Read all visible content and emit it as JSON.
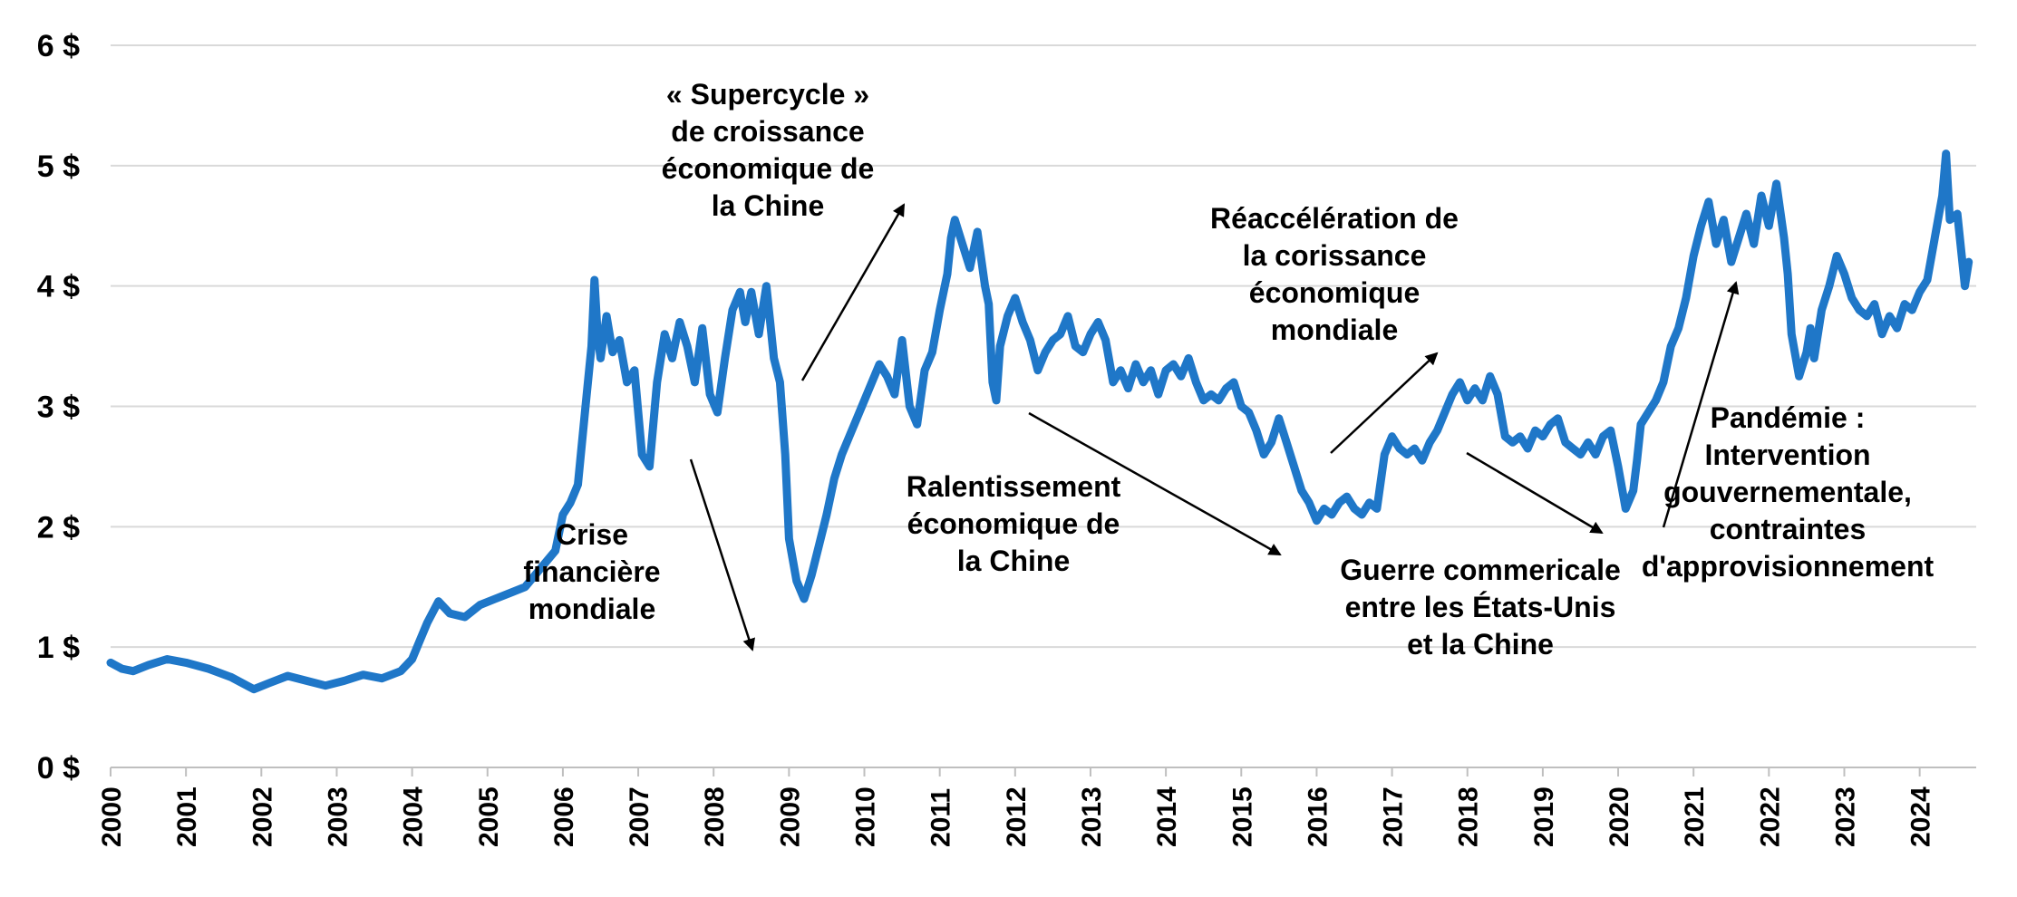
{
  "chart_data": {
    "type": "line",
    "title": "",
    "xlabel": "",
    "ylabel": "",
    "ylim": [
      0,
      6
    ],
    "xlim": [
      2000,
      2024.75
    ],
    "grid": true,
    "yticks": [
      {
        "value": 0,
        "label": "0 $"
      },
      {
        "value": 1,
        "label": "1 $"
      },
      {
        "value": 2,
        "label": "2 $"
      },
      {
        "value": 3,
        "label": "3 $"
      },
      {
        "value": 4,
        "label": "4 $"
      },
      {
        "value": 5,
        "label": "5 $"
      },
      {
        "value": 6,
        "label": "6 $"
      }
    ],
    "xticks": [
      "2000",
      "2001",
      "2002",
      "2003",
      "2004",
      "2005",
      "2006",
      "2007",
      "2008",
      "2009",
      "2010",
      "2011",
      "2012",
      "2013",
      "2014",
      "2015",
      "2016",
      "2017",
      "2018",
      "2019",
      "2020",
      "2021",
      "2022",
      "2023",
      "2024"
    ],
    "series": [
      {
        "color": "#1f77c8",
        "x": [
          2000.0,
          2000.15,
          2000.3,
          2000.5,
          2000.75,
          2001.0,
          2001.3,
          2001.6,
          2001.9,
          2002.1,
          2002.35,
          2002.6,
          2002.85,
          2003.1,
          2003.35,
          2003.6,
          2003.85,
          2004.0,
          2004.1,
          2004.2,
          2004.35,
          2004.5,
          2004.7,
          2004.9,
          2005.1,
          2005.3,
          2005.5,
          2005.7,
          2005.9,
          2006.0,
          2006.1,
          2006.2,
          2006.3,
          2006.38,
          2006.42,
          2006.46,
          2006.5,
          2006.58,
          2006.66,
          2006.75,
          2006.85,
          2006.95,
          2007.05,
          2007.15,
          2007.25,
          2007.35,
          2007.45,
          2007.55,
          2007.65,
          2007.75,
          2007.85,
          2007.95,
          2008.05,
          2008.15,
          2008.25,
          2008.35,
          2008.42,
          2008.5,
          2008.6,
          2008.7,
          2008.75,
          2008.8,
          2008.88,
          2008.95,
          2009.0,
          2009.1,
          2009.2,
          2009.3,
          2009.4,
          2009.5,
          2009.6,
          2009.7,
          2009.8,
          2009.9,
          2010.0,
          2010.1,
          2010.2,
          2010.3,
          2010.4,
          2010.5,
          2010.6,
          2010.7,
          2010.8,
          2010.9,
          2011.0,
          2011.1,
          2011.15,
          2011.2,
          2011.3,
          2011.4,
          2011.5,
          2011.6,
          2011.65,
          2011.7,
          2011.75,
          2011.8,
          2011.9,
          2012.0,
          2012.1,
          2012.2,
          2012.3,
          2012.4,
          2012.5,
          2012.6,
          2012.7,
          2012.8,
          2012.9,
          2013.0,
          2013.1,
          2013.2,
          2013.3,
          2013.4,
          2013.5,
          2013.6,
          2013.7,
          2013.8,
          2013.9,
          2014.0,
          2014.1,
          2014.2,
          2014.3,
          2014.4,
          2014.5,
          2014.6,
          2014.7,
          2014.8,
          2014.9,
          2015.0,
          2015.1,
          2015.2,
          2015.3,
          2015.4,
          2015.5,
          2015.6,
          2015.7,
          2015.8,
          2015.9,
          2016.0,
          2016.1,
          2016.2,
          2016.3,
          2016.4,
          2016.5,
          2016.6,
          2016.7,
          2016.8,
          2016.9,
          2017.0,
          2017.1,
          2017.2,
          2017.3,
          2017.4,
          2017.5,
          2017.6,
          2017.7,
          2017.8,
          2017.9,
          2018.0,
          2018.1,
          2018.2,
          2018.3,
          2018.4,
          2018.5,
          2018.6,
          2018.7,
          2018.8,
          2018.9,
          2019.0,
          2019.1,
          2019.2,
          2019.3,
          2019.4,
          2019.5,
          2019.6,
          2019.7,
          2019.8,
          2019.9,
          2020.0,
          2020.1,
          2020.2,
          2020.25,
          2020.3,
          2020.4,
          2020.5,
          2020.6,
          2020.7,
          2020.8,
          2020.9,
          2021.0,
          2021.1,
          2021.2,
          2021.3,
          2021.4,
          2021.5,
          2021.6,
          2021.7,
          2021.8,
          2021.9,
          2022.0,
          2022.1,
          2022.2,
          2022.25,
          2022.3,
          2022.4,
          2022.5,
          2022.55,
          2022.6,
          2022.7,
          2022.8,
          2022.9,
          2023.0,
          2023.1,
          2023.2,
          2023.3,
          2023.4,
          2023.5,
          2023.6,
          2023.7,
          2023.8,
          2023.9,
          2024.0,
          2024.1,
          2024.2,
          2024.3,
          2024.35,
          2024.4,
          2024.5,
          2024.6,
          2024.65
        ],
        "y": [
          0.87,
          0.82,
          0.8,
          0.85,
          0.9,
          0.87,
          0.82,
          0.75,
          0.65,
          0.7,
          0.76,
          0.72,
          0.68,
          0.72,
          0.77,
          0.74,
          0.8,
          0.9,
          1.05,
          1.2,
          1.38,
          1.28,
          1.25,
          1.35,
          1.4,
          1.45,
          1.5,
          1.65,
          1.8,
          2.1,
          2.2,
          2.35,
          3.0,
          3.5,
          4.05,
          3.6,
          3.4,
          3.75,
          3.45,
          3.55,
          3.2,
          3.3,
          2.6,
          2.5,
          3.2,
          3.6,
          3.4,
          3.7,
          3.5,
          3.2,
          3.65,
          3.1,
          2.95,
          3.4,
          3.8,
          3.95,
          3.7,
          3.95,
          3.6,
          4.0,
          3.7,
          3.4,
          3.2,
          2.6,
          1.9,
          1.55,
          1.4,
          1.6,
          1.85,
          2.1,
          2.4,
          2.6,
          2.75,
          2.9,
          3.05,
          3.2,
          3.35,
          3.25,
          3.1,
          3.55,
          3.0,
          2.85,
          3.3,
          3.45,
          3.8,
          4.1,
          4.4,
          4.55,
          4.35,
          4.15,
          4.45,
          4.0,
          3.85,
          3.2,
          3.05,
          3.5,
          3.75,
          3.9,
          3.7,
          3.55,
          3.3,
          3.45,
          3.55,
          3.6,
          3.75,
          3.5,
          3.45,
          3.6,
          3.7,
          3.55,
          3.2,
          3.3,
          3.15,
          3.35,
          3.2,
          3.3,
          3.1,
          3.3,
          3.35,
          3.25,
          3.4,
          3.2,
          3.05,
          3.1,
          3.05,
          3.15,
          3.2,
          3.0,
          2.95,
          2.8,
          2.6,
          2.7,
          2.9,
          2.7,
          2.5,
          2.3,
          2.2,
          2.05,
          2.15,
          2.1,
          2.2,
          2.25,
          2.15,
          2.1,
          2.2,
          2.15,
          2.6,
          2.75,
          2.65,
          2.6,
          2.65,
          2.55,
          2.7,
          2.8,
          2.95,
          3.1,
          3.2,
          3.05,
          3.15,
          3.05,
          3.25,
          3.1,
          2.75,
          2.7,
          2.75,
          2.65,
          2.8,
          2.75,
          2.85,
          2.9,
          2.7,
          2.65,
          2.6,
          2.7,
          2.6,
          2.75,
          2.8,
          2.5,
          2.15,
          2.3,
          2.55,
          2.85,
          2.95,
          3.05,
          3.2,
          3.5,
          3.65,
          3.9,
          4.25,
          4.5,
          4.7,
          4.35,
          4.55,
          4.2,
          4.4,
          4.6,
          4.35,
          4.75,
          4.5,
          4.85,
          4.4,
          4.1,
          3.6,
          3.25,
          3.45,
          3.65,
          3.4,
          3.8,
          4.0,
          4.25,
          4.1,
          3.9,
          3.8,
          3.75,
          3.85,
          3.6,
          3.75,
          3.65,
          3.85,
          3.8,
          3.95,
          4.05,
          4.4,
          4.75,
          5.1,
          4.55,
          4.6,
          4.0,
          4.2
        ]
      }
    ],
    "annotations": [
      {
        "lines": [
          "« Supercycle »",
          "de croissance",
          "économique de",
          "la Chine"
        ]
      },
      {
        "lines": [
          "Crise",
          "financière",
          "mondiale"
        ]
      },
      {
        "lines": [
          "Ralentissement",
          "économique de",
          "la Chine"
        ]
      },
      {
        "lines": [
          "Réaccélération de",
          "la corissance",
          "économique",
          "mondiale"
        ]
      },
      {
        "lines": [
          "Guerre commericale",
          "entre les États-Unis",
          "et la Chine"
        ]
      },
      {
        "lines": [
          "Pandémie :",
          "Intervention",
          "gouvernementale,",
          "contraintes",
          "d'approvisionnement"
        ]
      }
    ]
  }
}
